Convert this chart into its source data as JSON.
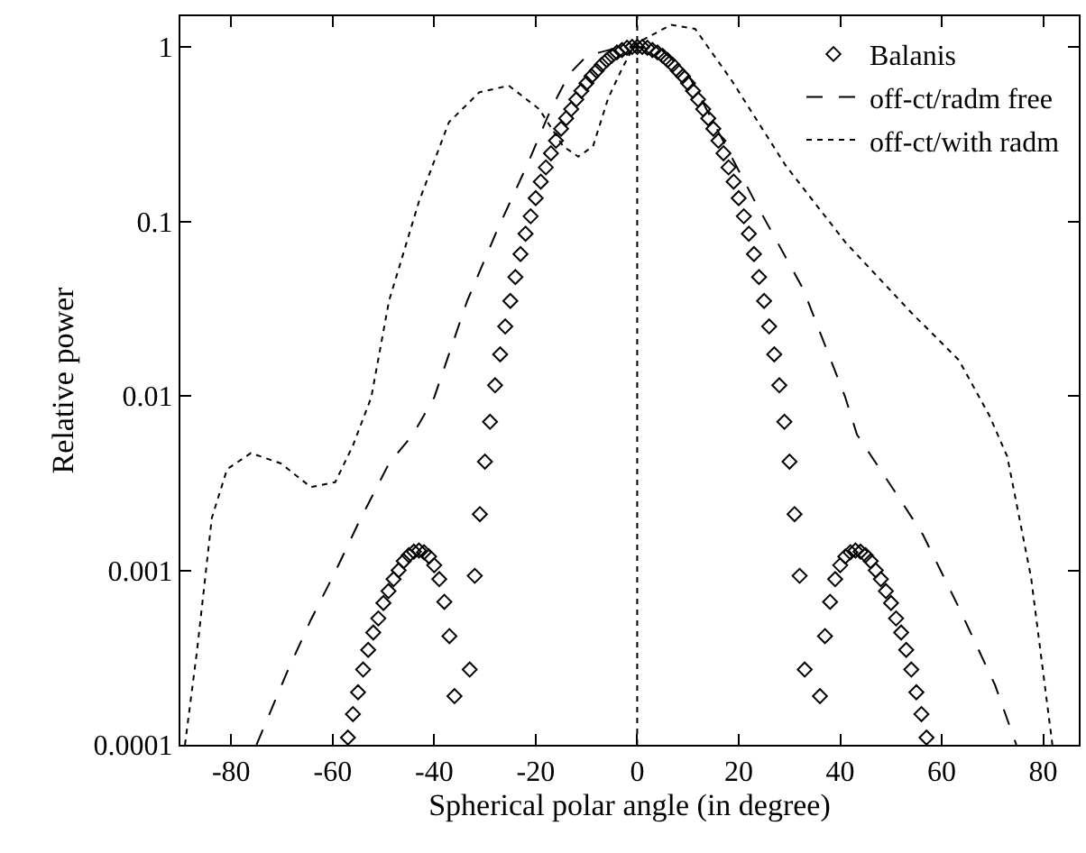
{
  "chart_data": {
    "type": "line",
    "xlabel": "Spherical polar angle (in degree)",
    "ylabel": "Relative power",
    "log": "y",
    "xlim": [
      -90,
      87
    ],
    "ylim": [
      0.0001,
      1.5
    ],
    "xticks": [
      -80,
      -60,
      -40,
      -20,
      0,
      20,
      40,
      60,
      80
    ],
    "yticks": [
      {
        "value": 0.0001,
        "label": "0.0001"
      },
      {
        "value": 0.001,
        "label": "0.001"
      },
      {
        "value": 0.01,
        "label": "0.01"
      },
      {
        "value": 0.1,
        "label": "0.1"
      },
      1
    ],
    "legend": "top right",
    "ref_lines": [
      {
        "axis": "x",
        "value": 0,
        "color": "#000000",
        "line_style": "dotted"
      }
    ],
    "series": [
      {
        "name": "Balanis",
        "type": "scatter",
        "marker": "diamond",
        "color": "#000000",
        "x": [
          -57,
          -56,
          -55,
          -54,
          -53,
          -52,
          -51,
          -50,
          -49,
          -48,
          -47,
          -46,
          -45,
          -44,
          -43,
          -42,
          -41,
          -40,
          -39,
          -38,
          -37,
          -36,
          -35,
          -34,
          -33,
          -32,
          -31,
          -30,
          -29,
          -28,
          -27,
          -26,
          -25,
          -24,
          -23,
          -22,
          -21,
          -20,
          -19,
          -18,
          -17,
          -16,
          -15,
          -14,
          -13,
          -12,
          -11,
          -10,
          -9,
          -8,
          -7,
          -6,
          -5,
          -4,
          -3,
          -2,
          -1,
          0,
          1,
          2,
          3,
          4,
          5,
          6,
          7,
          8,
          9,
          10,
          11,
          12,
          13,
          14,
          15,
          16,
          17,
          18,
          19,
          20,
          21,
          22,
          23,
          24,
          25,
          26,
          27,
          28,
          29,
          30,
          31,
          32,
          33,
          34,
          35,
          36,
          37,
          38,
          39,
          40,
          41,
          42,
          43,
          44,
          45,
          46,
          47,
          48,
          49,
          50,
          51,
          52,
          53,
          54,
          55,
          56,
          57
        ],
        "values": [
          0.00011,
          0.00015,
          0.0002,
          0.00027,
          0.00035,
          0.00044,
          0.00053,
          0.00065,
          0.00076,
          0.00089,
          0.001,
          0.00113,
          0.00122,
          0.00128,
          0.0013,
          0.00127,
          0.0012,
          0.00107,
          0.00089,
          0.00066,
          0.00042,
          0.00019,
          null,
          null,
          0.00027,
          0.00093,
          0.0021,
          0.0042,
          0.0071,
          0.0115,
          0.0173,
          0.025,
          0.035,
          0.048,
          0.065,
          0.085,
          0.107,
          0.136,
          0.169,
          0.204,
          0.246,
          0.29,
          0.34,
          0.39,
          0.44,
          0.5,
          0.56,
          0.62,
          0.68,
          0.73,
          0.79,
          0.84,
          0.89,
          0.93,
          0.96,
          0.99,
          1,
          1,
          1,
          0.99,
          0.96,
          0.93,
          0.89,
          0.84,
          0.79,
          0.73,
          0.68,
          0.62,
          0.56,
          0.5,
          0.44,
          0.39,
          0.34,
          0.29,
          0.246,
          0.204,
          0.169,
          0.136,
          0.107,
          0.085,
          0.065,
          0.048,
          0.035,
          0.025,
          0.0173,
          0.0115,
          0.0071,
          0.0042,
          0.0021,
          0.00093,
          0.00027,
          null,
          null,
          0.00019,
          0.00042,
          0.00066,
          0.00089,
          0.00107,
          0.0012,
          0.00127,
          0.0013,
          0.00128,
          0.00122,
          0.00113,
          0.001,
          0.00089,
          0.00076,
          0.00065,
          0.00053,
          0.00044,
          0.00035,
          0.00027,
          0.0002,
          0.00015,
          0.00011
        ]
      },
      {
        "name": "off-ct/radm free",
        "line_style": "dashed",
        "color": "#000000",
        "x": [
          -75,
          -69,
          -64.3,
          -59.5,
          -54.8,
          -48.9,
          -44.2,
          -40,
          -33.5,
          -27.6,
          -21.7,
          -17,
          -13.4,
          -9.9,
          -5,
          0,
          5,
          10,
          15,
          23.2,
          32.7,
          41,
          43.3,
          51.6,
          56.3,
          63.4,
          70.5,
          74.7
        ],
        "values": [
          0.0001,
          0.00026,
          0.00052,
          0.00098,
          0.0019,
          0.0041,
          0.006,
          0.0098,
          0.035,
          0.089,
          0.21,
          0.44,
          0.7,
          0.89,
          0.97,
          1,
          0.95,
          0.7,
          0.37,
          0.13,
          0.041,
          0.0098,
          0.006,
          0.0026,
          0.0016,
          0.00061,
          0.00022,
          0.0001
        ]
      },
      {
        "name": "off-ct/with radm",
        "line_style": "dotted",
        "color": "#000000",
        "x": [
          -89.1,
          -86.7,
          -83.8,
          -80.8,
          -76.1,
          -70.2,
          -64.3,
          -59.5,
          -56,
          -52.4,
          -48.9,
          -43,
          -37.1,
          -31.1,
          -25.3,
          -19.3,
          -14.6,
          -11.6,
          -8.7,
          -5.7,
          -3,
          -0.4,
          6.7,
          11.4,
          18.5,
          29.2,
          41,
          54,
          63.4,
          69.4,
          72.9,
          77.6,
          81.8
        ],
        "values": [
          0.0001,
          0.00035,
          0.002,
          0.0038,
          0.0047,
          0.0041,
          0.003,
          0.0032,
          0.0052,
          0.0098,
          0.035,
          0.13,
          0.37,
          0.55,
          0.6,
          0.44,
          0.27,
          0.235,
          0.27,
          0.51,
          0.75,
          1.04,
          1.34,
          1.27,
          0.65,
          0.21,
          0.076,
          0.03,
          0.016,
          0.0077,
          0.0045,
          0.00091,
          0.0001
        ]
      }
    ]
  }
}
